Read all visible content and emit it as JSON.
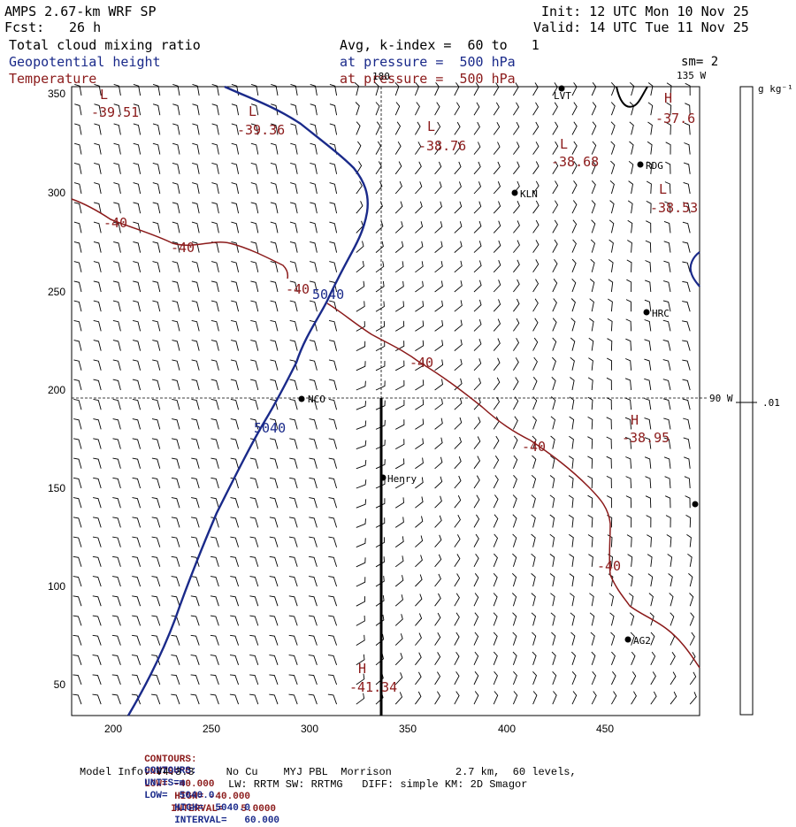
{
  "header": {
    "model_title": "AMPS 2.67-km WRF SP",
    "forecast_label": "Fcst:",
    "forecast_hours": "26 h",
    "init": "Init: 12 UTC Mon 10 Nov 25",
    "valid": "Valid: 14 UTC Tue 11 Nov 25",
    "field1": "Total cloud mixing ratio",
    "field2": "Geopotential height",
    "field3": "Temperature",
    "avg_line": "Avg, k-index =  60 to   1",
    "pressure_line_1": "at pressure =  500 hPa",
    "pressure_line_2": "at pressure =  500 hPa",
    "smoothing": "sm= 2"
  },
  "map": {
    "lon_label_180": "180",
    "lon_label_135w": "135 W",
    "lon_label_90w": "90 W",
    "colorbar_unit": "g kg⁻¹",
    "colorbar_value": ".01",
    "y_ticks": [
      "350",
      "300",
      "250",
      "200",
      "150",
      "100",
      "50"
    ],
    "x_ticks": [
      "200",
      "250",
      "300",
      "350",
      "400",
      "450"
    ],
    "stations": [
      "LVT",
      "RDG",
      "KLN",
      "HRC",
      "NCO",
      "Henry",
      "AG2"
    ],
    "temperature_labels": {
      "contour": "-40",
      "highs_lows": [
        {
          "type": "L",
          "value": "-39.51"
        },
        {
          "type": "L",
          "value": "-39.36"
        },
        {
          "type": "L",
          "value": "-38.76"
        },
        {
          "type": "L",
          "value": "-38.68"
        },
        {
          "type": "H",
          "value": "-37.6"
        },
        {
          "type": "L",
          "value": "-38.53"
        },
        {
          "type": "H",
          "value": "-38.95"
        },
        {
          "type": "H",
          "value": "-41.34"
        }
      ]
    },
    "height_contour_label": "5040",
    "colors": {
      "temperature": "#8b1a1a",
      "height": "#1a2a8a",
      "barbs": "#000000",
      "background": "#ffffff"
    }
  },
  "footer": {
    "red_line": {
      "contours": "CONTOURS:",
      "units": "UNITS=°C",
      "low": "LOW= -40.000",
      "high": "HIGH= -40.000",
      "interval": "INTERVAL=   5.0000"
    },
    "blue_line": {
      "contours": "CONTOURS:",
      "units": "UNITS=m",
      "low": "LOW=  5040.0",
      "high": "HIGH=  5040.0",
      "interval": "INTERVAL=   60.000"
    },
    "model_info_1": "Model Info: V4.3.3     No Cu    MYJ PBL  Morrison          2.7 km,  60 levels,",
    "model_info_2": "LW: RRTM SW: RRTMG   DIFF: simple KM: 2D Smagor"
  }
}
